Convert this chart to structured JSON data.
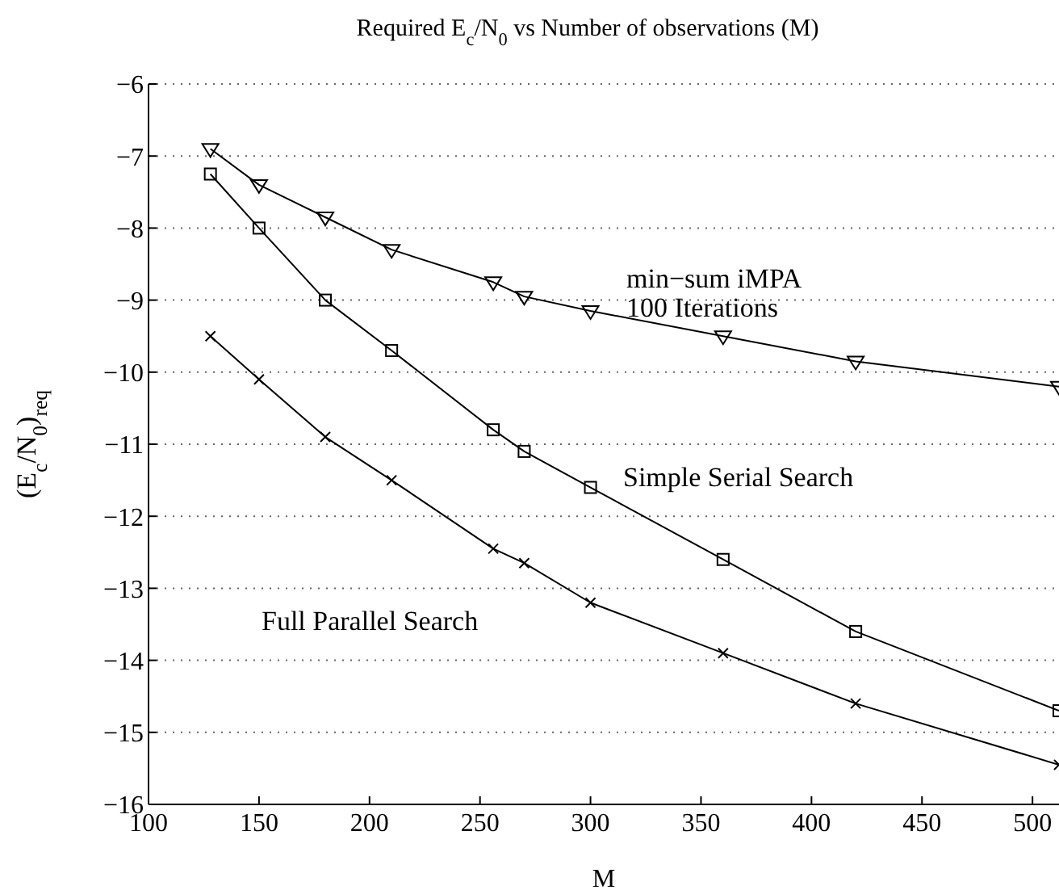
{
  "chart_data": {
    "type": "line",
    "title": "Required E$_{c}$/N$_{0}$ vs Number of observations (M)",
    "xlabel": "M",
    "ylabel": "(E$_{c}$/N$_{0}$)$_{req}$",
    "x": [
      128,
      150,
      180,
      210,
      256,
      270,
      300,
      360,
      420,
      512
    ],
    "series": [
      {
        "name": "min−sum iMPA\n100 Iterations",
        "color": "#000000",
        "marker": "triangle",
        "values": [
          -6.9,
          -7.4,
          -7.85,
          -8.3,
          -8.75,
          -8.95,
          -9.15,
          -9.5,
          -9.85,
          -10.2
        ]
      },
      {
        "name": "Simple Serial Search",
        "color": "#000000",
        "marker": "square",
        "values": [
          -7.25,
          -8.0,
          -9.0,
          -9.7,
          -10.8,
          -11.1,
          -11.6,
          -12.6,
          -13.6,
          -14.7
        ]
      },
      {
        "name": "Full Parallel Search",
        "color": "#000000",
        "marker": "cross",
        "values": [
          -9.5,
          -10.1,
          -10.9,
          -11.5,
          -12.45,
          -12.65,
          -13.2,
          -13.9,
          -14.6,
          -15.45
        ]
      }
    ],
    "xlim": [
      100,
      512
    ],
    "xticks": [
      100,
      150,
      200,
      250,
      300,
      350,
      400,
      450,
      500
    ],
    "ylim": [
      -16,
      -6
    ],
    "yticks": [
      -16,
      -15,
      -14,
      -13,
      -12,
      -11,
      -10,
      -9,
      -8,
      -7,
      -6
    ],
    "grid": "y",
    "line_style": "solid"
  }
}
